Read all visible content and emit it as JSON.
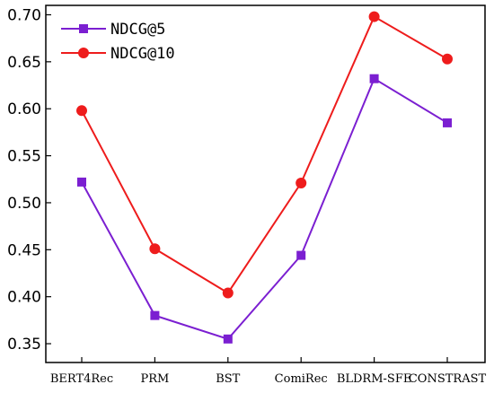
{
  "chart_data": {
    "type": "line",
    "title": "",
    "xlabel": "",
    "ylabel": "",
    "categories": [
      "BERT4Rec",
      "PRM",
      "BST",
      "ComiRec",
      "BLDRM-SFE",
      "CONSTRAST"
    ],
    "ylim": [
      0.33,
      0.71
    ],
    "yticks": [
      0.35,
      0.4,
      0.45,
      0.5,
      0.55,
      0.6,
      0.65,
      0.7
    ],
    "ytick_labels": [
      "0.35",
      "0.40",
      "0.45",
      "0.50",
      "0.55",
      "0.60",
      "0.65",
      "0.70"
    ],
    "grid": false,
    "legend_position": "top-left",
    "series": [
      {
        "name": "NDCG@5",
        "values": [
          0.522,
          0.38,
          0.355,
          0.444,
          0.632,
          0.585
        ],
        "color": "#7b1fd1",
        "marker": "square"
      },
      {
        "name": "NDCG@10",
        "values": [
          0.598,
          0.451,
          0.404,
          0.521,
          0.698,
          0.653
        ],
        "color": "#ee1c1c",
        "marker": "circle"
      }
    ]
  }
}
